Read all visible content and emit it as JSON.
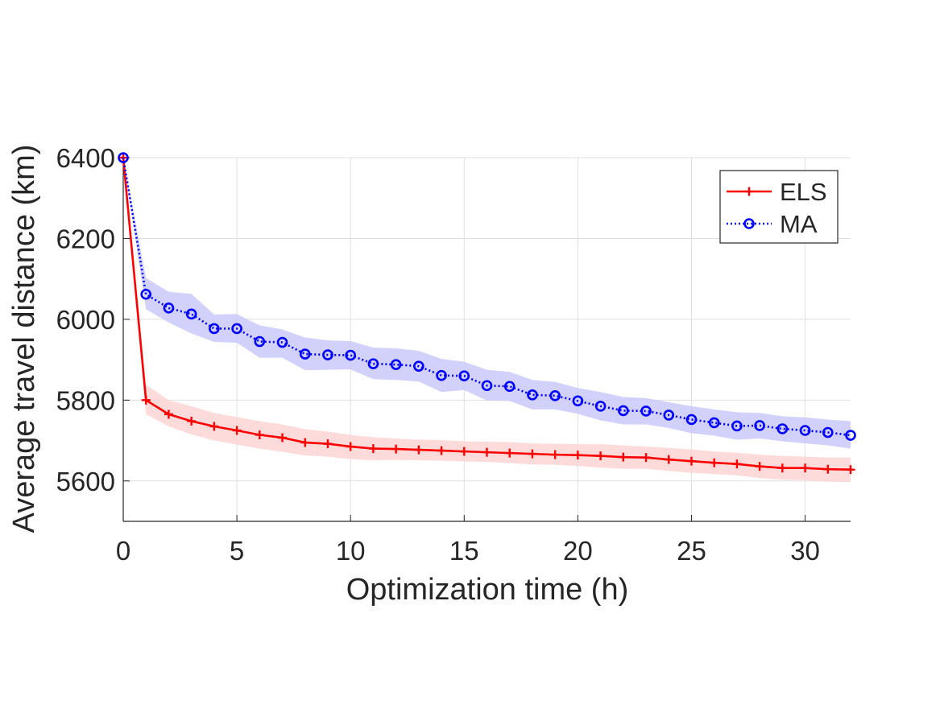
{
  "chart_data": {
    "type": "line",
    "title": "",
    "xlabel": "Optimization time (h)",
    "ylabel": "Average travel distance (km)",
    "xlim": [
      0,
      32
    ],
    "ylim": [
      5500,
      6400
    ],
    "xticks": [
      0,
      5,
      10,
      15,
      20,
      25,
      30
    ],
    "yticks": [
      5600,
      5800,
      6000,
      6200,
      6400
    ],
    "grid": true,
    "legend_position": "top-right",
    "series": [
      {
        "name": "ELS",
        "color": "#ff0000",
        "band_color": "#fdd5d5",
        "line_style": "solid",
        "marker": "plus",
        "x": [
          0,
          1,
          2,
          3,
          4,
          5,
          6,
          7,
          8,
          9,
          10,
          11,
          12,
          13,
          14,
          15,
          16,
          17,
          18,
          19,
          20,
          21,
          22,
          23,
          24,
          25,
          26,
          27,
          28,
          29,
          30,
          31,
          32
        ],
        "values": [
          6400,
          5800,
          5765,
          5748,
          5735,
          5725,
          5714,
          5707,
          5695,
          5692,
          5685,
          5680,
          5679,
          5677,
          5675,
          5673,
          5671,
          5669,
          5667,
          5665,
          5664,
          5662,
          5659,
          5658,
          5653,
          5649,
          5645,
          5642,
          5636,
          5632,
          5632,
          5629,
          5628
        ],
        "band_upper": [
          6400,
          5838,
          5800,
          5785,
          5768,
          5758,
          5748,
          5740,
          5728,
          5722,
          5714,
          5708,
          5705,
          5702,
          5701,
          5698,
          5697,
          5696,
          5693,
          5692,
          5691,
          5691,
          5688,
          5685,
          5682,
          5678,
          5673,
          5670,
          5665,
          5662,
          5660,
          5658,
          5658
        ],
        "band_lower": [
          6400,
          5765,
          5735,
          5715,
          5700,
          5690,
          5680,
          5672,
          5663,
          5660,
          5654,
          5651,
          5652,
          5651,
          5650,
          5648,
          5647,
          5644,
          5641,
          5640,
          5637,
          5633,
          5630,
          5630,
          5625,
          5620,
          5617,
          5614,
          5607,
          5603,
          5602,
          5598,
          5597
        ]
      },
      {
        "name": "MA",
        "color": "#0000ff",
        "band_color": "#c9c9fa",
        "line_style": "dotted",
        "marker": "circle",
        "x": [
          0,
          1,
          2,
          3,
          4,
          5,
          6,
          7,
          8,
          9,
          10,
          11,
          12,
          13,
          14,
          15,
          16,
          17,
          18,
          19,
          20,
          21,
          22,
          23,
          24,
          25,
          26,
          27,
          28,
          29,
          30,
          31,
          32
        ],
        "values": [
          6400,
          6062,
          6028,
          6013,
          5977,
          5977,
          5945,
          5943,
          5914,
          5912,
          5911,
          5890,
          5888,
          5884,
          5861,
          5860,
          5836,
          5834,
          5813,
          5811,
          5798,
          5785,
          5774,
          5773,
          5763,
          5752,
          5744,
          5736,
          5737,
          5729,
          5725,
          5720,
          5713
        ],
        "band_upper": [
          6400,
          6102,
          6068,
          6063,
          6012,
          6013,
          5985,
          5975,
          5955,
          5948,
          5946,
          5930,
          5928,
          5922,
          5902,
          5895,
          5875,
          5870,
          5850,
          5845,
          5830,
          5820,
          5808,
          5805,
          5795,
          5785,
          5777,
          5770,
          5768,
          5760,
          5757,
          5752,
          5748
        ],
        "band_lower": [
          6400,
          6025,
          5992,
          5965,
          5944,
          5942,
          5905,
          5905,
          5874,
          5875,
          5876,
          5852,
          5850,
          5846,
          5820,
          5825,
          5799,
          5798,
          5777,
          5777,
          5766,
          5750,
          5740,
          5740,
          5731,
          5718,
          5712,
          5702,
          5705,
          5698,
          5693,
          5688,
          5680
        ]
      }
    ]
  }
}
